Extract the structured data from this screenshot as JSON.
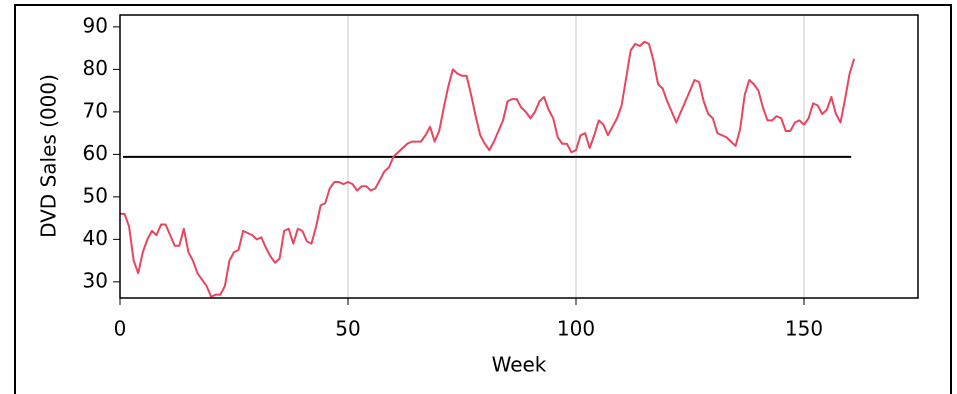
{
  "chart_data": {
    "type": "line",
    "x_label": "Week",
    "y_label": "DVD Sales (000)",
    "xlim": [
      0,
      175
    ],
    "xticks": [
      0,
      50,
      100,
      150
    ],
    "ylim": [
      26.2,
      92.8
    ],
    "yticks": [
      30,
      40,
      50,
      60,
      70,
      80,
      90
    ],
    "grid": true,
    "grid_color": "#dcdcdc",
    "reference_line": {
      "value": 59.4,
      "color": "#000000"
    },
    "x": [
      0,
      1,
      2,
      3,
      4,
      5,
      6,
      7,
      8,
      9,
      10,
      11,
      12,
      13,
      14,
      15,
      16,
      17,
      18,
      19,
      20,
      21,
      22,
      23,
      24,
      25,
      26,
      27,
      28,
      29,
      30,
      31,
      32,
      33,
      34,
      35,
      36,
      37,
      38,
      39,
      40,
      41,
      42,
      43,
      44,
      45,
      46,
      47,
      48,
      49,
      50,
      51,
      52,
      53,
      54,
      55,
      56,
      57,
      58,
      59,
      60,
      61,
      62,
      63,
      64,
      65,
      66,
      67,
      68,
      69,
      70,
      71,
      72,
      73,
      74,
      75,
      76,
      77,
      78,
      79,
      80,
      81,
      82,
      83,
      84,
      85,
      86,
      87,
      88,
      89,
      90,
      91,
      92,
      93,
      94,
      95,
      96,
      97,
      98,
      99,
      100,
      101,
      102,
      103,
      104,
      105,
      106,
      107,
      108,
      109,
      110,
      111,
      112,
      113,
      114,
      115,
      116,
      117,
      118,
      119,
      120,
      121,
      122,
      123,
      124,
      125,
      126,
      127,
      128,
      129,
      130,
      131,
      132,
      133,
      134,
      135,
      136,
      137,
      138,
      139,
      140,
      141,
      142,
      143,
      144,
      145,
      146,
      147,
      148,
      149,
      150,
      151,
      152,
      153,
      154,
      155,
      156,
      157,
      158,
      159,
      160,
      161
    ],
    "series": [
      {
        "name": "DVD Sales",
        "color": "#e8455e",
        "values": [
          46,
          46,
          43,
          35,
          32,
          37,
          40,
          42,
          41,
          43.5,
          43.5,
          41,
          38.5,
          38.5,
          42.5,
          37,
          35,
          32,
          30.5,
          29,
          26.5,
          27,
          27,
          29,
          35,
          37,
          37.5,
          42,
          41.5,
          41,
          40,
          40.5,
          38,
          36,
          34.5,
          35.5,
          42,
          42.5,
          39,
          42.5,
          42,
          39.5,
          39,
          43,
          48,
          48.5,
          52,
          53.5,
          53.5,
          53,
          53.5,
          53,
          51.5,
          52.5,
          52.5,
          51.5,
          52,
          54,
          56,
          57,
          59.5,
          60.5,
          61.5,
          62.5,
          63,
          63,
          63,
          64.5,
          66.5,
          63,
          65.5,
          71,
          76,
          80,
          79,
          78.5,
          78.5,
          74,
          69,
          64.5,
          62.5,
          61,
          63,
          65.5,
          68,
          72.5,
          73,
          73,
          71,
          70,
          68.5,
          70,
          72.5,
          73.5,
          70.5,
          68.5,
          64,
          62.5,
          62.5,
          60.5,
          61,
          64.5,
          65,
          61.5,
          64.5,
          68,
          67,
          64.5,
          66.5,
          68.5,
          71.5,
          78,
          84.5,
          86,
          85.5,
          86.5,
          86,
          82,
          76.5,
          75.5,
          72.5,
          70,
          67.5,
          70,
          72.5,
          75,
          77.5,
          77,
          72.5,
          69.5,
          68.5,
          65,
          64.5,
          64,
          63,
          62,
          66,
          74,
          77.5,
          76.5,
          75,
          71,
          68,
          68,
          69,
          68.5,
          65.5,
          65.5,
          67.5,
          68,
          67,
          68.5,
          72,
          71.5,
          69.5,
          70.5,
          73.5,
          69.5,
          67.5,
          73,
          79,
          82.5
        ]
      }
    ]
  }
}
